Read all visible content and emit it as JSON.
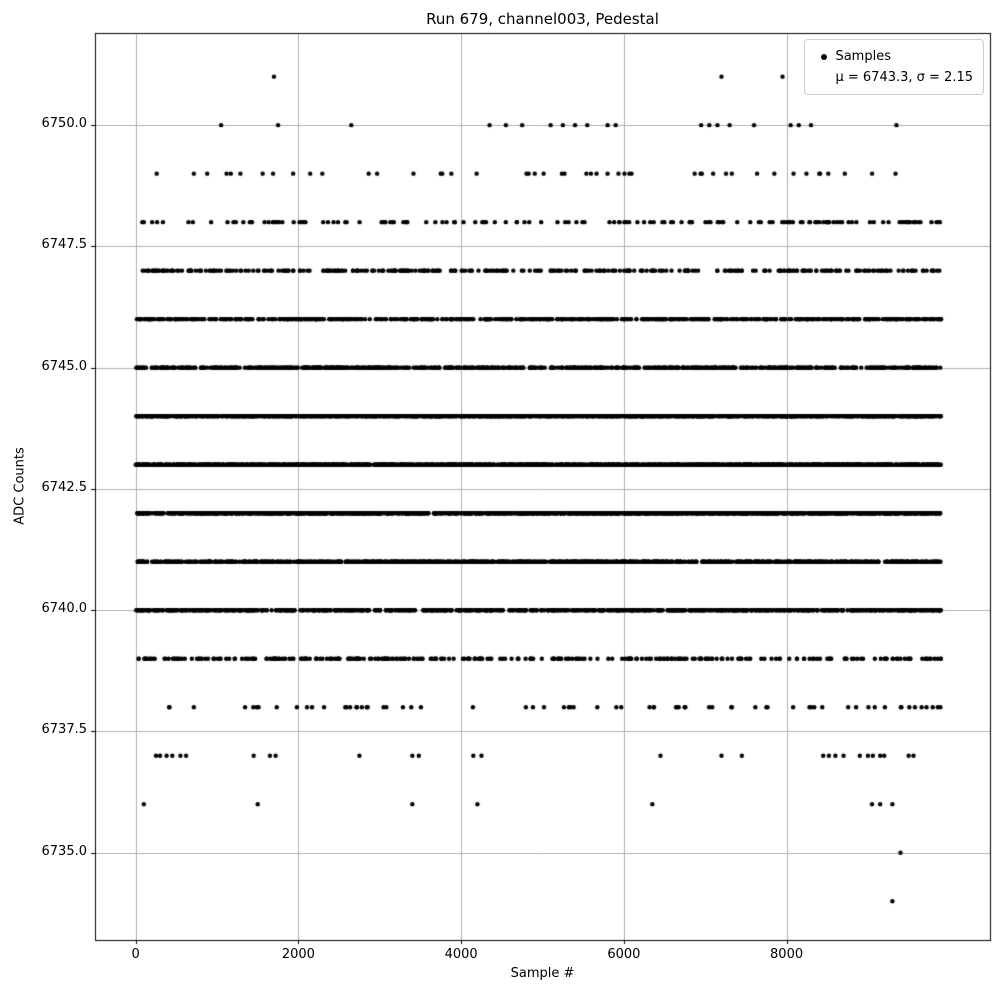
{
  "figure": {
    "title": "Run 679, channel003, Pedestal",
    "xlabel": "Sample #",
    "ylabel": "ADC Counts"
  },
  "legend": {
    "items": [
      {
        "label": "Samples",
        "marker": "dot",
        "marker_color": "#000000"
      },
      {
        "label": "μ = 6743.3, σ = 2.15",
        "marker": "none"
      }
    ]
  },
  "chart_data": {
    "type": "scatter",
    "title": "Run 679, channel003, Pedestal",
    "xlabel": "Sample #",
    "ylabel": "ADC Counts",
    "xlim": [
      -500,
      10500
    ],
    "ylim": [
      6733.2,
      6751.9
    ],
    "xticks": [
      0,
      2000,
      4000,
      6000,
      8000
    ],
    "yticks": [
      6735.0,
      6737.5,
      6740.0,
      6742.5,
      6745.0,
      6747.5,
      6750.0
    ],
    "grid": true,
    "grid_color": "#b0b0b0",
    "legend_labels": [
      "Samples",
      "μ = 6743.3, σ = 2.15"
    ],
    "legend_position": "upper right",
    "stats": {
      "mu": 6743.3,
      "sigma": 2.15
    },
    "marker": {
      "shape": "dot",
      "color": "#000000",
      "radius": 2.2
    },
    "x_data_range": [
      0,
      9900
    ],
    "seed": 679,
    "bands": [
      {
        "adc": 6751,
        "x": [
          1700,
          7200,
          7950
        ]
      },
      {
        "adc": 6750,
        "x": [
          1050,
          1750,
          2650,
          4350,
          4550,
          4750,
          5100,
          5250,
          5400,
          5550,
          5800,
          5900,
          6950,
          7050,
          7150,
          7300,
          7600,
          8050,
          8150,
          8300,
          9350
        ]
      },
      {
        "adc": 6749,
        "count": 48
      },
      {
        "adc": 6748,
        "count": 150
      },
      {
        "adc": 6747,
        "count": 350
      },
      {
        "adc": 6746,
        "count": 650
      },
      {
        "adc": 6745,
        "count": 850
      },
      {
        "adc": 6744,
        "count": 1800
      },
      {
        "adc": 6743,
        "count": 1750
      },
      {
        "adc": 6742,
        "count": 1550
      },
      {
        "adc": 6741,
        "count": 1050
      },
      {
        "adc": 6740,
        "count": 900
      },
      {
        "adc": 6739,
        "count": 320
      },
      {
        "adc": 6738,
        "count": 70
      },
      {
        "adc": 6737,
        "x": [
          250,
          300,
          380,
          450,
          550,
          620,
          1450,
          1650,
          1720,
          2750,
          3400,
          3480,
          4150,
          4250,
          6450,
          7200,
          7450,
          8450,
          8520,
          8600,
          8700,
          8900,
          9000,
          9060,
          9150,
          9200,
          9500,
          9560
        ]
      },
      {
        "adc": 6736,
        "x": [
          100,
          1500,
          3400,
          4200,
          6350,
          9050,
          9150,
          9300
        ]
      },
      {
        "adc": 6735,
        "x": [
          9400
        ]
      },
      {
        "adc": 6734,
        "x": [
          9300
        ]
      }
    ]
  }
}
